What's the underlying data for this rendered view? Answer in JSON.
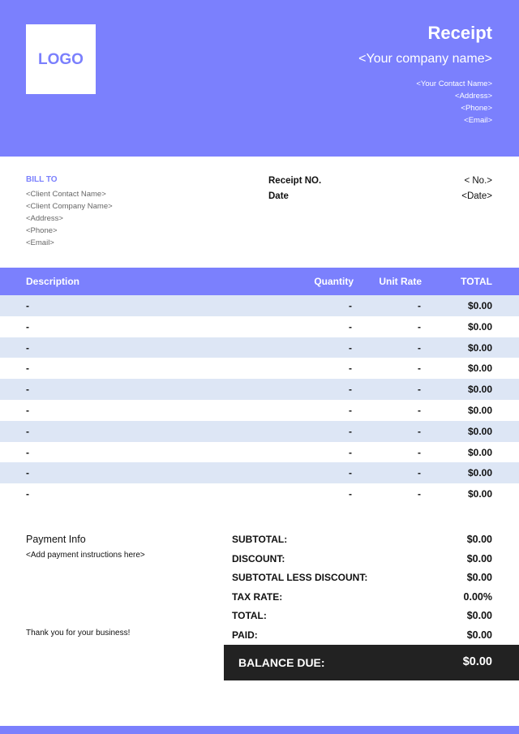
{
  "header": {
    "logo": "LOGO",
    "title": "Receipt",
    "company": "<Your company name>",
    "contact": [
      "<Your Contact Name>",
      "<Address>",
      "<Phone>",
      "<Email>"
    ]
  },
  "bill_to": {
    "label": "BILL TO",
    "lines": [
      "<Client Contact Name>",
      "<Client Company Name>",
      "<Address>",
      "<Phone>",
      "<Email>"
    ]
  },
  "receipt_info": {
    "rows": [
      [
        "Receipt NO.",
        "< No.>"
      ],
      [
        "Date",
        "<Date>"
      ]
    ]
  },
  "table": {
    "columns": [
      "Description",
      "Quantity",
      "Unit Rate",
      "TOTAL"
    ],
    "rows": [
      [
        "-",
        "-",
        "-",
        "$0.00"
      ],
      [
        "-",
        "-",
        "-",
        "$0.00"
      ],
      [
        "-",
        "-",
        "-",
        "$0.00"
      ],
      [
        "-",
        "-",
        "-",
        "$0.00"
      ],
      [
        "-",
        "-",
        "-",
        "$0.00"
      ],
      [
        "-",
        "-",
        "-",
        "$0.00"
      ],
      [
        "-",
        "-",
        "-",
        "$0.00"
      ],
      [
        "-",
        "-",
        "-",
        "$0.00"
      ],
      [
        "-",
        "-",
        "-",
        "$0.00"
      ],
      [
        "-",
        "-",
        "-",
        "$0.00"
      ]
    ]
  },
  "payment": {
    "title": "Payment Info",
    "instructions": "<Add payment instructions here>",
    "thanks": "Thank you for your business!"
  },
  "summary": {
    "rows": [
      [
        "SUBTOTAL:",
        "$0.00"
      ],
      [
        "DISCOUNT:",
        "$0.00"
      ],
      [
        "SUBTOTAL LESS DISCOUNT:",
        "$0.00"
      ],
      [
        "TAX RATE:",
        "0.00%"
      ],
      [
        "TOTAL:",
        "$0.00"
      ],
      [
        "PAID:",
        "$0.00"
      ]
    ],
    "balance": {
      "label": "BALANCE DUE:",
      "value": "$0.00"
    }
  }
}
